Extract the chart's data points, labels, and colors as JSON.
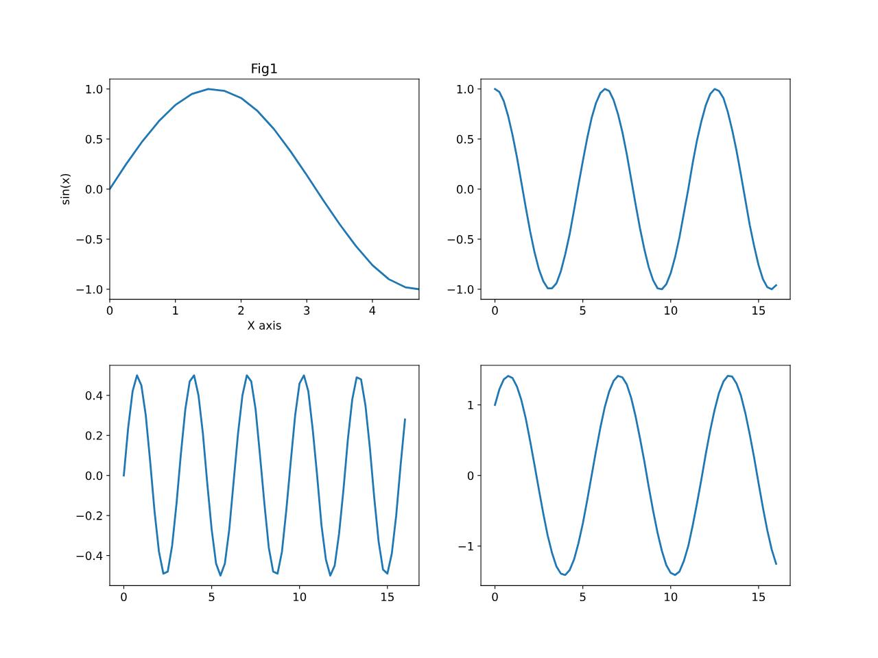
{
  "chart_data": [
    {
      "type": "line",
      "title": "Fig1",
      "xlabel": "X axis",
      "ylabel": "sin(x)",
      "grid": false,
      "marker": "none",
      "line_style": "solid",
      "x": [
        0,
        0.25,
        0.5,
        0.75,
        1,
        1.25,
        1.5,
        1.75,
        2,
        2.25,
        2.5,
        2.75,
        3,
        3.25,
        3.5,
        3.75,
        4,
        4.25,
        4.5,
        4.71
      ],
      "series": [
        {
          "color": "#1f77b4",
          "values": [
            0,
            0.25,
            0.48,
            0.68,
            0.84,
            0.95,
            1.0,
            0.98,
            0.91,
            0.78,
            0.6,
            0.38,
            0.14,
            -0.11,
            -0.35,
            -0.57,
            -0.76,
            -0.9,
            -0.98,
            -1.0
          ]
        }
      ],
      "xlim": [
        0,
        4.71
      ],
      "xticks": [
        0,
        1,
        2,
        3,
        4
      ],
      "ylim": [
        -1.1,
        1.1
      ],
      "yticks": [
        {
          "value": -1,
          "label": "−1.0"
        },
        {
          "value": -0.5,
          "label": "−0.5"
        },
        {
          "value": 0,
          "label": "0.0"
        },
        {
          "value": 0.5,
          "label": "0.5"
        },
        {
          "value": 1,
          "label": "1.0"
        }
      ]
    },
    {
      "type": "line",
      "grid": false,
      "marker": "none",
      "line_style": "solid",
      "x": [
        0,
        0.25,
        0.5,
        0.75,
        1,
        1.25,
        1.5,
        1.75,
        2,
        2.25,
        2.5,
        2.75,
        3,
        3.25,
        3.5,
        3.75,
        4,
        4.25,
        4.5,
        4.75,
        5,
        5.25,
        5.5,
        5.75,
        6,
        6.25,
        6.5,
        6.75,
        7,
        7.25,
        7.5,
        7.75,
        8,
        8.25,
        8.5,
        8.75,
        9,
        9.25,
        9.5,
        9.75,
        10,
        10.25,
        10.5,
        10.75,
        11,
        11.25,
        11.5,
        11.75,
        12,
        12.25,
        12.5,
        12.75,
        13,
        13.25,
        13.5,
        13.75,
        14,
        14.25,
        14.5,
        14.75,
        15,
        15.25,
        15.5,
        15.75,
        16
      ],
      "series": [
        {
          "color": "#1f77b4",
          "values": [
            1.0,
            0.97,
            0.88,
            0.73,
            0.54,
            0.32,
            0.07,
            -0.18,
            -0.42,
            -0.63,
            -0.8,
            -0.92,
            -0.99,
            -0.99,
            -0.94,
            -0.82,
            -0.65,
            -0.45,
            -0.21,
            0.04,
            0.28,
            0.51,
            0.71,
            0.86,
            0.96,
            1.0,
            0.98,
            0.89,
            0.75,
            0.57,
            0.35,
            0.1,
            -0.15,
            -0.39,
            -0.6,
            -0.78,
            -0.91,
            -0.99,
            -1.0,
            -0.95,
            -0.84,
            -0.68,
            -0.48,
            -0.24,
            0.0,
            0.26,
            0.49,
            0.68,
            0.84,
            0.95,
            1.0,
            0.98,
            0.91,
            0.77,
            0.59,
            0.38,
            0.14,
            -0.11,
            -0.36,
            -0.57,
            -0.76,
            -0.9,
            -0.98,
            -1.0,
            -0.96
          ]
        }
      ],
      "xlim": [
        -0.8,
        16.8
      ],
      "xticks": [
        0,
        5,
        10,
        15
      ],
      "ylim": [
        -1.1,
        1.1
      ],
      "yticks": [
        {
          "value": -1,
          "label": "−1.0"
        },
        {
          "value": -0.5,
          "label": "−0.5"
        },
        {
          "value": 0,
          "label": "0.0"
        },
        {
          "value": 0.5,
          "label": "0.5"
        },
        {
          "value": 1,
          "label": "1.0"
        }
      ]
    },
    {
      "type": "line",
      "grid": false,
      "marker": "none",
      "line_style": "solid",
      "x": [
        0,
        0.25,
        0.5,
        0.75,
        1,
        1.25,
        1.5,
        1.75,
        2,
        2.25,
        2.5,
        2.75,
        3,
        3.25,
        3.5,
        3.75,
        4,
        4.25,
        4.5,
        4.75,
        5,
        5.25,
        5.5,
        5.75,
        6,
        6.25,
        6.5,
        6.75,
        7,
        7.25,
        7.5,
        7.75,
        8,
        8.25,
        8.5,
        8.75,
        9,
        9.25,
        9.5,
        9.75,
        10,
        10.25,
        10.5,
        10.75,
        11,
        11.25,
        11.5,
        11.75,
        12,
        12.25,
        12.5,
        12.75,
        13,
        13.25,
        13.5,
        13.75,
        14,
        14.25,
        14.5,
        14.75,
        15,
        15.25,
        15.5,
        15.75,
        16
      ],
      "series": [
        {
          "color": "#1f77b4",
          "values": [
            0,
            0.24,
            0.42,
            0.5,
            0.45,
            0.3,
            0.07,
            -0.18,
            -0.38,
            -0.49,
            -0.48,
            -0.35,
            -0.14,
            0.11,
            0.33,
            0.47,
            0.5,
            0.4,
            0.21,
            -0.04,
            -0.27,
            -0.44,
            -0.5,
            -0.44,
            -0.27,
            -0.03,
            0.21,
            0.4,
            0.5,
            0.47,
            0.33,
            0.1,
            -0.14,
            -0.36,
            -0.48,
            -0.49,
            -0.38,
            -0.17,
            0.07,
            0.3,
            0.46,
            0.5,
            0.42,
            0.23,
            0.0,
            -0.25,
            -0.42,
            -0.5,
            -0.45,
            -0.29,
            -0.07,
            0.18,
            0.38,
            0.49,
            0.48,
            0.35,
            0.14,
            -0.11,
            -0.33,
            -0.47,
            -0.49,
            -0.39,
            -0.2,
            0.05,
            0.28
          ]
        }
      ],
      "xlim": [
        -0.8,
        16.8
      ],
      "xticks": [
        0,
        5,
        10,
        15
      ],
      "ylim": [
        -0.55,
        0.55
      ],
      "yticks": [
        {
          "value": -0.4,
          "label": "−0.4"
        },
        {
          "value": -0.2,
          "label": "−0.2"
        },
        {
          "value": 0,
          "label": "0.0"
        },
        {
          "value": 0.2,
          "label": "0.2"
        },
        {
          "value": 0.4,
          "label": "0.4"
        }
      ]
    },
    {
      "type": "line",
      "grid": false,
      "marker": "none",
      "line_style": "solid",
      "x": [
        0,
        0.25,
        0.5,
        0.75,
        1,
        1.25,
        1.5,
        1.75,
        2,
        2.25,
        2.5,
        2.75,
        3,
        3.25,
        3.5,
        3.75,
        4,
        4.25,
        4.5,
        4.75,
        5,
        5.25,
        5.5,
        5.75,
        6,
        6.25,
        6.5,
        6.75,
        7,
        7.25,
        7.5,
        7.75,
        8,
        8.25,
        8.5,
        8.75,
        9,
        9.25,
        9.5,
        9.75,
        10,
        10.25,
        10.5,
        10.75,
        11,
        11.25,
        11.5,
        11.75,
        12,
        12.25,
        12.5,
        12.75,
        13,
        13.25,
        13.5,
        13.75,
        14,
        14.25,
        14.5,
        14.75,
        15,
        15.25,
        15.5,
        15.75,
        16
      ],
      "series": [
        {
          "color": "#1f77b4",
          "values": [
            1.0,
            1.22,
            1.36,
            1.41,
            1.38,
            1.26,
            1.07,
            0.81,
            0.49,
            0.15,
            -0.2,
            -0.54,
            -0.85,
            -1.1,
            -1.29,
            -1.39,
            -1.41,
            -1.34,
            -1.19,
            -0.96,
            -0.68,
            -0.35,
            0.0,
            0.35,
            0.68,
            0.97,
            1.19,
            1.34,
            1.41,
            1.39,
            1.29,
            1.1,
            0.84,
            0.53,
            0.2,
            -0.16,
            -0.5,
            -0.81,
            -1.07,
            -1.27,
            -1.38,
            -1.41,
            -1.36,
            -1.21,
            -1.0,
            -0.71,
            -0.39,
            -0.05,
            0.31,
            0.64,
            0.93,
            1.17,
            1.33,
            1.41,
            1.4,
            1.3,
            1.13,
            0.88,
            0.58,
            0.25,
            -0.11,
            -0.46,
            -0.78,
            -1.05,
            -1.25
          ]
        }
      ],
      "xlim": [
        -0.8,
        16.8
      ],
      "xticks": [
        0,
        5,
        10,
        15
      ],
      "ylim": [
        -1.56,
        1.56
      ],
      "yticks": [
        {
          "value": -1,
          "label": "−1"
        },
        0,
        1
      ]
    }
  ]
}
